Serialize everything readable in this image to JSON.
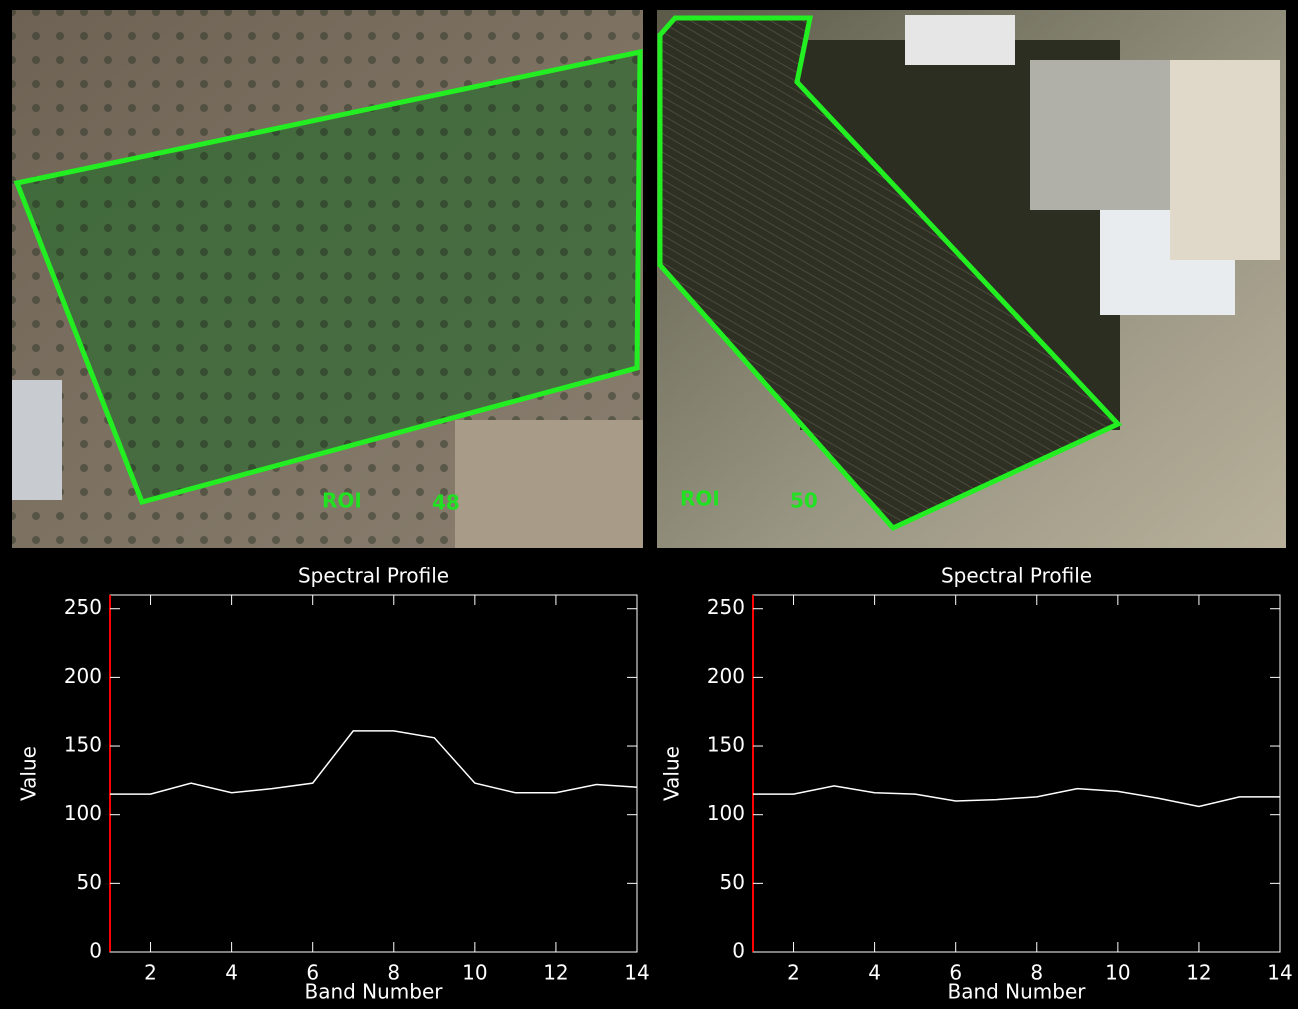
{
  "images": [
    {
      "roi_word": "ROI",
      "roi_number": 48
    },
    {
      "roi_word": "ROI",
      "roi_number": 50
    }
  ],
  "chart_data": [
    {
      "type": "line",
      "title": "Spectral Profile",
      "x_label": "Band Number",
      "y_label": "Value",
      "x": [
        1,
        2,
        3,
        4,
        5,
        6,
        7,
        8,
        9,
        10,
        11,
        12,
        13,
        14
      ],
      "series": [
        {
          "color": "#ffffff",
          "values": [
            115,
            115,
            123,
            116,
            119,
            123,
            161,
            161,
            156,
            123,
            116,
            116,
            122,
            120
          ]
        }
      ],
      "xlim": [
        1,
        14
      ],
      "xticks": [
        2,
        4,
        6,
        8,
        10,
        12,
        14
      ],
      "ylim": [
        0,
        260
      ],
      "yticks": [
        0,
        50,
        100,
        150,
        200,
        250
      ],
      "y_axis_color": "#ff0000"
    },
    {
      "type": "line",
      "title": "Spectral Profile",
      "x_label": "Band Number",
      "y_label": "Value",
      "x": [
        1,
        2,
        3,
        4,
        5,
        6,
        7,
        8,
        9,
        10,
        11,
        12,
        13,
        14
      ],
      "series": [
        {
          "color": "#ffffff",
          "values": [
            115,
            115,
            121,
            116,
            115,
            110,
            111,
            113,
            119,
            117,
            112,
            106,
            113,
            113
          ]
        }
      ],
      "xlim": [
        1,
        14
      ],
      "xticks": [
        2,
        4,
        6,
        8,
        10,
        12,
        14
      ],
      "ylim": [
        0,
        260
      ],
      "yticks": [
        0,
        50,
        100,
        150,
        200,
        250
      ],
      "y_axis_color": "#ff0000"
    }
  ]
}
